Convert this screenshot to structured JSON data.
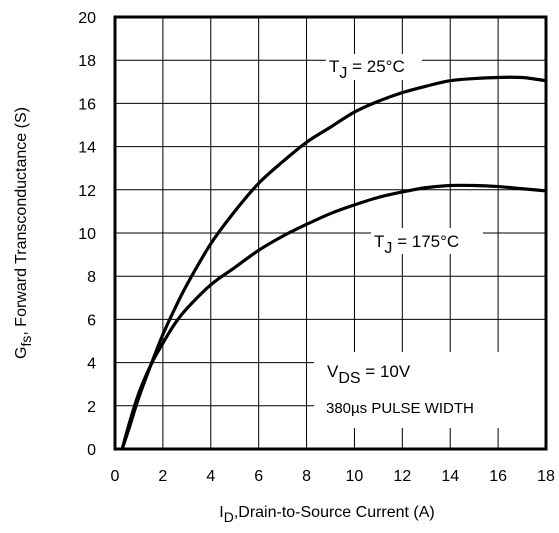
{
  "chart_data": {
    "type": "line",
    "xlabel": {
      "main": "I",
      "sub": "D",
      "rest": ",Drain-to-Source Current (A)"
    },
    "ylabel": {
      "main": "G",
      "sub": "fs",
      "rest": ", Forward Transconductance (S)"
    },
    "xlim": [
      0,
      18
    ],
    "ylim": [
      0,
      20
    ],
    "xticks": [
      0,
      2,
      4,
      6,
      8,
      10,
      12,
      14,
      16,
      18
    ],
    "yticks": [
      0,
      2,
      4,
      6,
      8,
      10,
      12,
      14,
      16,
      18,
      20
    ],
    "grid": true,
    "series": [
      {
        "name": "TJ = 25°C",
        "label": {
          "main": "T",
          "sub": "J",
          "rest": " = 25°C"
        },
        "x": [
          0.3,
          0.6,
          1.0,
          1.5,
          2.0,
          2.5,
          3.0,
          4.0,
          5.0,
          6.0,
          7.0,
          8.0,
          9.0,
          10.0,
          11.0,
          12.0,
          13.0,
          14.0,
          15.0,
          16.0,
          17.0,
          18.0
        ],
        "y": [
          0.0,
          1.0,
          2.4,
          3.9,
          5.3,
          6.5,
          7.6,
          9.5,
          11.0,
          12.3,
          13.3,
          14.2,
          14.9,
          15.6,
          16.1,
          16.5,
          16.8,
          17.05,
          17.15,
          17.2,
          17.2,
          17.05
        ]
      },
      {
        "name": "TJ = 175°C",
        "label": {
          "main": "T",
          "sub": "J",
          "rest": " = 175°C"
        },
        "x": [
          0.3,
          0.6,
          1.0,
          1.5,
          2.0,
          2.5,
          3.0,
          4.0,
          5.0,
          6.0,
          7.0,
          8.0,
          9.0,
          10.0,
          11.0,
          12.0,
          13.0,
          14.0,
          15.0,
          16.0,
          17.0,
          18.0
        ],
        "y": [
          0.0,
          1.2,
          2.6,
          3.9,
          4.9,
          5.8,
          6.5,
          7.6,
          8.4,
          9.2,
          9.85,
          10.4,
          10.9,
          11.3,
          11.65,
          11.9,
          12.1,
          12.2,
          12.2,
          12.15,
          12.05,
          11.95
        ]
      }
    ],
    "annotation": {
      "line1": {
        "main": "V",
        "sub": "DS",
        "rest": " = 10V"
      },
      "line2": "380µs PULSE WIDTH"
    }
  }
}
